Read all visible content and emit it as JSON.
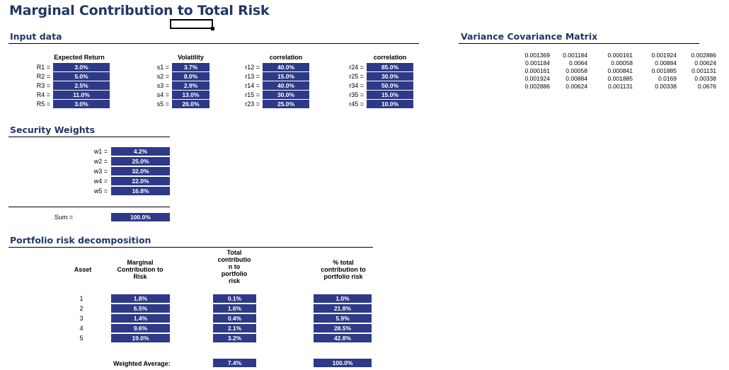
{
  "title": "Marginal Contribution to Total Risk",
  "sections": {
    "input": "Input data",
    "weights": "Security Weights",
    "decomp": "Portfolio risk decomposition",
    "vcm": "Variance Covariance Matrix"
  },
  "input": {
    "headers": [
      "Expected Return",
      "Volatility",
      "correlation",
      "correlation"
    ],
    "groups": [
      {
        "labels": [
          "R1 =",
          "R2 =",
          "R3 =",
          "R4 =",
          "R5 ="
        ],
        "values": [
          "3.0%",
          "5.0%",
          "2.5%",
          "11.0%",
          "3.0%"
        ]
      },
      {
        "labels": [
          "s1 =",
          "s2 =",
          "s3 =",
          "s4 =",
          "s5 ="
        ],
        "values": [
          "3.7%",
          "8.0%",
          "2.9%",
          "13.0%",
          "26.0%"
        ]
      },
      {
        "labels": [
          "r12 =",
          "r13 =",
          "r14 =",
          "r15 =",
          "r23 ="
        ],
        "values": [
          "40.0%",
          "15.0%",
          "40.0%",
          "30.0%",
          "25.0%"
        ]
      },
      {
        "labels": [
          "r24 =",
          "r25 =",
          "r34 =",
          "r35 =",
          "r45 ="
        ],
        "values": [
          "85.0%",
          "30.0%",
          "50.0%",
          "15.0%",
          "10.0%"
        ]
      }
    ]
  },
  "weights": {
    "labels": [
      "w1 =",
      "w2 =",
      "w3 =",
      "w4 =",
      "w5 ="
    ],
    "values": [
      "4.2%",
      "25.0%",
      "32.0%",
      "22.0%",
      "16.8%"
    ],
    "sum_label": "Sum =",
    "sum_value": "100.0%"
  },
  "decomp": {
    "headers": {
      "asset": "Asset",
      "marginal": [
        "Marginal",
        "Contribution to",
        "Risk"
      ],
      "total": [
        "Total",
        "contributio",
        "n to",
        "portfolio",
        "risk"
      ],
      "pct": [
        "% total",
        "contribution to",
        "portfolio risk"
      ]
    },
    "assets": [
      "1",
      "2",
      "3",
      "4",
      "5"
    ],
    "marginal": [
      "1.8%",
      "6.5%",
      "1.4%",
      "9.6%",
      "19.0%"
    ],
    "total": [
      "0.1%",
      "1.6%",
      "0.4%",
      "2.1%",
      "3.2%"
    ],
    "pct": [
      "1.0%",
      "21.8%",
      "5.9%",
      "28.5%",
      "42.8%"
    ],
    "weighted_label": "Weighted Average:",
    "weighted_total": "7.4%",
    "weighted_pct": "100.0%"
  },
  "vcm": [
    [
      "0.001369",
      "0.001184",
      "0.000161",
      "0.001924",
      "0.002886"
    ],
    [
      "0.001184",
      "0.0064",
      "0.00058",
      "0.00884",
      "0.00624"
    ],
    [
      "0.000161",
      "0.00058",
      "0.000841",
      "0.001885",
      "0.001131"
    ],
    [
      "0.001924",
      "0.00884",
      "0.001885",
      "0.0169",
      "0.00338"
    ],
    [
      "0.002886",
      "0.00624",
      "0.001131",
      "0.00338",
      "0.0676"
    ]
  ]
}
